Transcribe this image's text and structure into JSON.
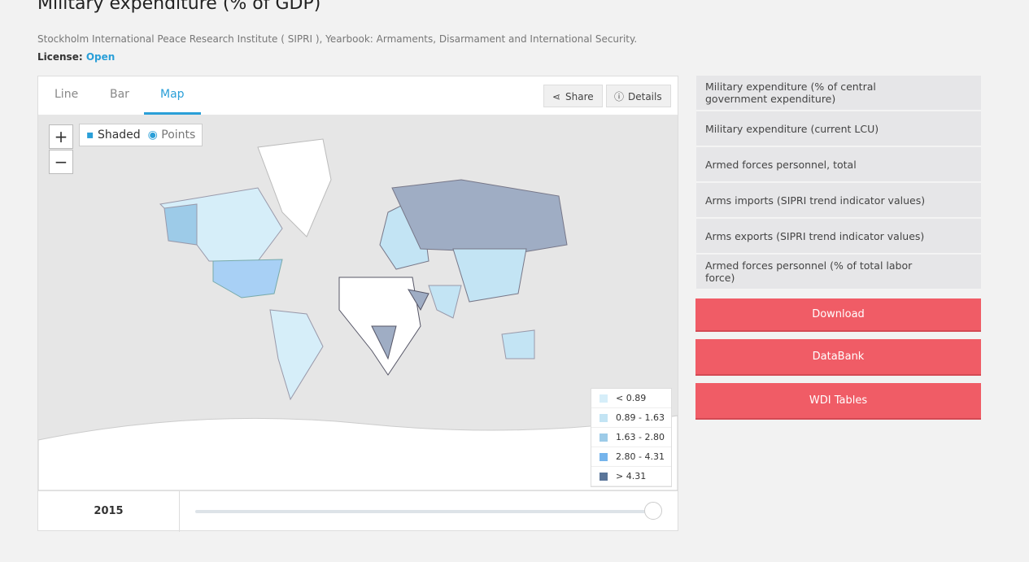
{
  "header": {
    "title": "Military expenditure (% of GDP)",
    "source": "Stockholm International Peace Research Institute ( SIPRI ), Yearbook: Armaments, Disarmament and International Security.",
    "license_label": "License:",
    "license_value": "Open"
  },
  "tabs": [
    "Line",
    "Bar",
    "Map"
  ],
  "active_tab": 2,
  "actions": [
    "Share",
    "Details"
  ],
  "zoom": [
    "+",
    "−"
  ],
  "map_modes": [
    "Shaded",
    "Points"
  ],
  "legend": [
    {
      "label": "< 0.89",
      "color": "#d6eef9"
    },
    {
      "label": "0.89 - 1.63",
      "color": "#c3e4f4"
    },
    {
      "label": "1.63 - 2.80",
      "color": "#9dcbe8"
    },
    {
      "label": "2.80 - 4.31",
      "color": "#75b4ec"
    },
    {
      "label": "> 4.31",
      "color": "#5a7599"
    }
  ],
  "year": "2015",
  "related": [
    "Military expenditure (% of central government expenditure)",
    "Military expenditure (current LCU)",
    "Armed forces personnel, total",
    "Arms imports (SIPRI trend indicator values)",
    "Arms exports (SIPRI trend indicator values)",
    "Armed forces personnel (% of total labor force)"
  ],
  "buttons": [
    "Download",
    "DataBank",
    "WDI Tables"
  ]
}
